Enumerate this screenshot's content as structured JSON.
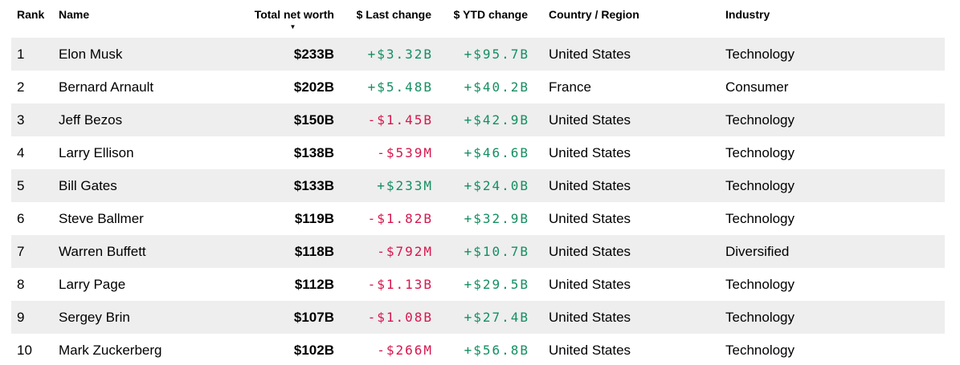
{
  "colors": {
    "positive": "#148f62",
    "negative": "#d5174e",
    "row_alt": "#eeeeee",
    "text": "#000000"
  },
  "icons": {
    "sort_desc": "▼"
  },
  "table": {
    "columns": [
      {
        "key": "rank",
        "label": "Rank"
      },
      {
        "key": "name",
        "label": "Name"
      },
      {
        "key": "net_worth",
        "label": "Total net worth",
        "sorted": "desc"
      },
      {
        "key": "last_change",
        "label": "$ Last change"
      },
      {
        "key": "ytd_change",
        "label": "$ YTD change"
      },
      {
        "key": "country",
        "label": "Country / Region"
      },
      {
        "key": "industry",
        "label": "Industry"
      }
    ],
    "rows": [
      {
        "rank": "1",
        "name": "Elon Musk",
        "net_worth": "$233B",
        "last_change": "+$3.32B",
        "ytd_change": "+$95.7B",
        "country": "United States",
        "industry": "Technology"
      },
      {
        "rank": "2",
        "name": "Bernard Arnault",
        "net_worth": "$202B",
        "last_change": "+$5.48B",
        "ytd_change": "+$40.2B",
        "country": "France",
        "industry": "Consumer"
      },
      {
        "rank": "3",
        "name": "Jeff Bezos",
        "net_worth": "$150B",
        "last_change": "-$1.45B",
        "ytd_change": "+$42.9B",
        "country": "United States",
        "industry": "Technology"
      },
      {
        "rank": "4",
        "name": "Larry Ellison",
        "net_worth": "$138B",
        "last_change": "-$539M",
        "ytd_change": "+$46.6B",
        "country": "United States",
        "industry": "Technology"
      },
      {
        "rank": "5",
        "name": "Bill Gates",
        "net_worth": "$133B",
        "last_change": "+$233M",
        "ytd_change": "+$24.0B",
        "country": "United States",
        "industry": "Technology"
      },
      {
        "rank": "6",
        "name": "Steve Ballmer",
        "net_worth": "$119B",
        "last_change": "-$1.82B",
        "ytd_change": "+$32.9B",
        "country": "United States",
        "industry": "Technology"
      },
      {
        "rank": "7",
        "name": "Warren Buffett",
        "net_worth": "$118B",
        "last_change": "-$792M",
        "ytd_change": "+$10.7B",
        "country": "United States",
        "industry": "Diversified"
      },
      {
        "rank": "8",
        "name": "Larry Page",
        "net_worth": "$112B",
        "last_change": "-$1.13B",
        "ytd_change": "+$29.5B",
        "country": "United States",
        "industry": "Technology"
      },
      {
        "rank": "9",
        "name": "Sergey Brin",
        "net_worth": "$107B",
        "last_change": "-$1.08B",
        "ytd_change": "+$27.4B",
        "country": "United States",
        "industry": "Technology"
      },
      {
        "rank": "10",
        "name": "Mark Zuckerberg",
        "net_worth": "$102B",
        "last_change": "-$266M",
        "ytd_change": "+$56.8B",
        "country": "United States",
        "industry": "Technology"
      }
    ]
  }
}
